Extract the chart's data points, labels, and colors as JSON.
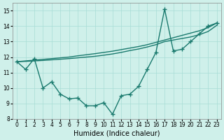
{
  "xlabel": "Humidex (Indice chaleur)",
  "xlim": [
    -0.5,
    23.5
  ],
  "ylim": [
    8,
    15.5
  ],
  "yticks": [
    8,
    9,
    10,
    11,
    12,
    13,
    14,
    15
  ],
  "xticks": [
    0,
    1,
    2,
    3,
    4,
    5,
    6,
    7,
    8,
    9,
    10,
    11,
    12,
    13,
    14,
    15,
    16,
    17,
    18,
    19,
    20,
    21,
    22,
    23
  ],
  "bg_color": "#cff0ea",
  "line_color": "#1a7a6e",
  "grid_color": "#a8ddd5",
  "series": [
    {
      "x": [
        0,
        1,
        2,
        3,
        4,
        5,
        6,
        7,
        8,
        9,
        10,
        11,
        12,
        13,
        14,
        15,
        16,
        17,
        18,
        19,
        20,
        21,
        22,
        23
      ],
      "y": [
        11.7,
        11.2,
        11.9,
        10.0,
        10.4,
        9.6,
        9.3,
        9.35,
        8.85,
        8.85,
        9.05,
        8.3,
        9.5,
        9.6,
        10.1,
        11.2,
        12.3,
        15.1,
        12.4,
        12.5,
        13.0,
        13.5,
        14.0,
        14.2
      ],
      "marker": "+",
      "markersize": 4,
      "linewidth": 1.0
    },
    {
      "x": [
        0,
        1,
        2,
        3,
        4,
        5,
        6,
        7,
        8,
        9,
        10,
        11,
        12,
        13,
        14,
        15,
        16,
        17,
        18,
        19,
        20,
        21,
        22,
        23
      ],
      "y": [
        11.7,
        11.75,
        11.8,
        11.85,
        11.9,
        11.95,
        12.0,
        12.08,
        12.15,
        12.22,
        12.3,
        12.38,
        12.48,
        12.58,
        12.68,
        12.8,
        12.95,
        13.1,
        13.25,
        13.4,
        13.55,
        13.7,
        13.9,
        14.2
      ],
      "marker": null,
      "linewidth": 1.0
    },
    {
      "x": [
        0,
        1,
        2,
        3,
        4,
        5,
        6,
        7,
        8,
        9,
        10,
        11,
        12,
        13,
        14,
        15,
        16,
        17,
        18,
        19,
        20,
        21,
        22,
        23
      ],
      "y": [
        11.7,
        11.72,
        11.75,
        11.78,
        11.82,
        11.86,
        11.9,
        11.95,
        12.0,
        12.05,
        12.12,
        12.2,
        12.3,
        12.42,
        12.52,
        12.65,
        12.8,
        13.0,
        13.1,
        13.2,
        13.3,
        13.45,
        13.65,
        14.05
      ],
      "marker": null,
      "linewidth": 1.0
    }
  ]
}
